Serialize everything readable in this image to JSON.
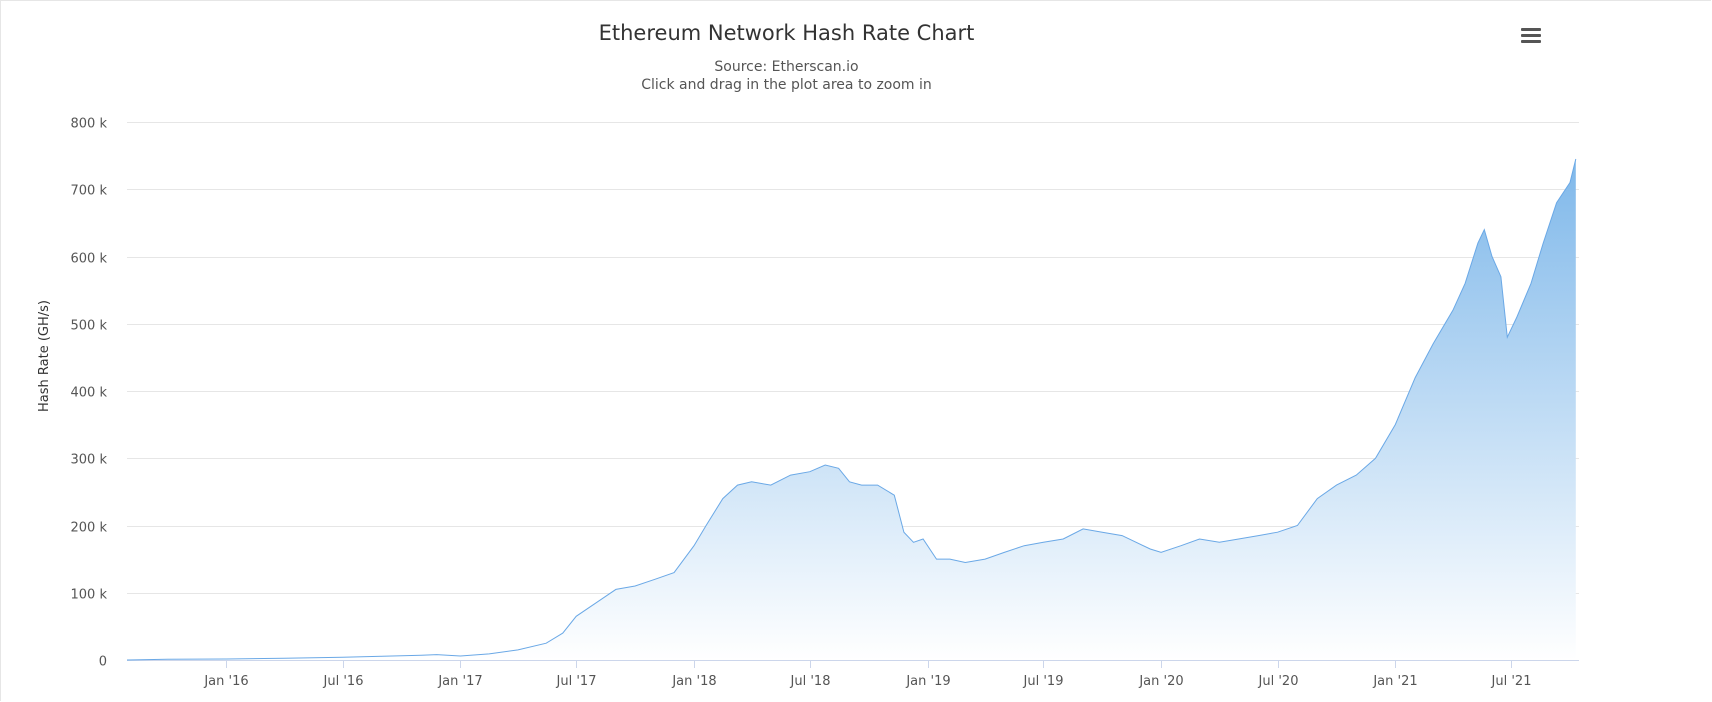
{
  "colors": {
    "series_line": "#6aa8e6",
    "area_top": "#7fb8ea",
    "area_bottom": "#ffffff",
    "grid": "#e6e6e6",
    "axis_line": "#ccd6eb"
  },
  "menu": {
    "icon": "hamburger-menu-icon"
  },
  "chart_data": {
    "type": "area",
    "title": "Ethereum Network Hash Rate Chart",
    "subtitle_lines": [
      "Source: Etherscan.io",
      "Click and drag in the plot area to zoom in"
    ],
    "xlabel": "",
    "ylabel": "Hash Rate (GH/s)",
    "ylim": [
      0,
      800000
    ],
    "y_ticks": [
      0,
      100000,
      200000,
      300000,
      400000,
      500000,
      600000,
      700000,
      800000
    ],
    "y_tick_labels": [
      "0",
      "100 k",
      "200 k",
      "300 k",
      "400 k",
      "500 k",
      "600 k",
      "700 k",
      "800 k"
    ],
    "xlim": [
      "2015-07-30",
      "2021-10-15"
    ],
    "x_ticks": [
      "2016-01-01",
      "2016-07-01",
      "2017-01-01",
      "2017-07-01",
      "2018-01-01",
      "2018-07-01",
      "2019-01-01",
      "2019-07-01",
      "2020-01-01",
      "2020-07-01",
      "2021-01-01",
      "2021-07-01"
    ],
    "x_tick_labels": [
      "Jan '16",
      "Jul '16",
      "Jan '17",
      "Jul '17",
      "Jan '18",
      "Jul '18",
      "Jan '19",
      "Jul '19",
      "Jan '20",
      "Jul '20",
      "Jan '21",
      "Jul '21"
    ],
    "grid": true,
    "legend": false,
    "series": [
      {
        "x": [
          "2015-07-30",
          "2015-10-01",
          "2016-01-01",
          "2016-04-01",
          "2016-07-01",
          "2016-09-01",
          "2016-11-01",
          "2016-11-25",
          "2017-01-01",
          "2017-02-15",
          "2017-04-01",
          "2017-05-15",
          "2017-06-10",
          "2017-07-01",
          "2017-08-01",
          "2017-09-01",
          "2017-10-01",
          "2017-11-01",
          "2017-12-01",
          "2018-01-01",
          "2018-01-20",
          "2018-02-15",
          "2018-03-10",
          "2018-04-01",
          "2018-05-01",
          "2018-06-01",
          "2018-07-01",
          "2018-07-25",
          "2018-08-15",
          "2018-09-01",
          "2018-09-20",
          "2018-10-15",
          "2018-11-10",
          "2018-11-25",
          "2018-12-10",
          "2018-12-25",
          "2019-01-15",
          "2019-02-05",
          "2019-03-01",
          "2019-04-01",
          "2019-05-01",
          "2019-06-01",
          "2019-07-01",
          "2019-08-01",
          "2019-09-01",
          "2019-10-01",
          "2019-11-01",
          "2019-12-15",
          "2020-01-01",
          "2020-02-01",
          "2020-03-01",
          "2020-04-01",
          "2020-05-01",
          "2020-06-01",
          "2020-07-01",
          "2020-08-01",
          "2020-09-01",
          "2020-10-01",
          "2020-11-01",
          "2020-12-01",
          "2021-01-01",
          "2021-02-01",
          "2021-03-01",
          "2021-04-01",
          "2021-04-20",
          "2021-05-10",
          "2021-05-20",
          "2021-06-01",
          "2021-06-15",
          "2021-06-25",
          "2021-07-10",
          "2021-08-01",
          "2021-08-20",
          "2021-09-10",
          "2021-10-01",
          "2021-10-10"
        ],
        "values": [
          0,
          1000,
          1500,
          2500,
          4000,
          5500,
          7000,
          8000,
          6000,
          9000,
          15000,
          25000,
          40000,
          65000,
          85000,
          105000,
          110000,
          120000,
          130000,
          170000,
          200000,
          240000,
          260000,
          265000,
          260000,
          275000,
          280000,
          290000,
          285000,
          265000,
          260000,
          260000,
          245000,
          190000,
          175000,
          180000,
          150000,
          150000,
          145000,
          150000,
          160000,
          170000,
          175000,
          180000,
          195000,
          190000,
          185000,
          165000,
          160000,
          170000,
          180000,
          175000,
          180000,
          185000,
          190000,
          200000,
          240000,
          260000,
          275000,
          300000,
          350000,
          420000,
          470000,
          520000,
          560000,
          620000,
          640000,
          600000,
          570000,
          480000,
          510000,
          560000,
          620000,
          680000,
          710000,
          745000
        ]
      }
    ]
  }
}
